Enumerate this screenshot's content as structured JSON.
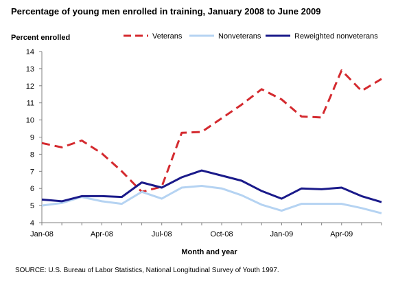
{
  "chart_data": {
    "type": "line",
    "title": "Percentage of young men enrolled in training, January 2008 to June 2009",
    "ylabel": "Percent enrolled",
    "xlabel": "Month and year",
    "source": "SOURCE: U.S. Bureau of Labor Statistics, National Longitudinal Survey of Youth 1997.",
    "ylim": [
      4,
      14
    ],
    "yticks": [
      "4",
      "5",
      "6",
      "7",
      "8",
      "9",
      "10",
      "11",
      "12",
      "13",
      "14"
    ],
    "x": [
      "Jan-08",
      "Feb-08",
      "Mar-08",
      "Apr-08",
      "May-08",
      "Jun-08",
      "Jul-08",
      "Aug-08",
      "Sep-08",
      "Oct-08",
      "Nov-08",
      "Dec-08",
      "Jan-09",
      "Feb-09",
      "Mar-09",
      "Apr-09",
      "May-09",
      "Jun-09"
    ],
    "xtick_labels": [
      "Jan-08",
      "Apr-08",
      "Jul-08",
      "Oct-08",
      "Jan-09",
      "Apr-09"
    ],
    "legend_position": "top",
    "series": [
      {
        "name": "Veterans",
        "color": "#d42a2f",
        "dash": true,
        "values": [
          8.65,
          8.4,
          8.8,
          8.05,
          7.0,
          5.8,
          6.1,
          9.25,
          9.3,
          10.1,
          10.9,
          11.8,
          11.2,
          10.2,
          10.15,
          12.9,
          11.7,
          12.4
        ]
      },
      {
        "name": "Nonveterans",
        "color": "#b5d3f2",
        "dash": false,
        "values": [
          5.0,
          5.15,
          5.5,
          5.25,
          5.1,
          5.8,
          5.4,
          6.05,
          6.15,
          6.0,
          5.6,
          5.05,
          4.7,
          5.1,
          5.1,
          5.1,
          4.85,
          4.55
        ]
      },
      {
        "name": "Reweighted nonveterans",
        "color": "#1a1a8a",
        "dash": false,
        "values": [
          5.35,
          5.25,
          5.55,
          5.55,
          5.5,
          6.35,
          6.05,
          6.65,
          7.05,
          6.75,
          6.45,
          5.85,
          5.4,
          6.0,
          5.95,
          6.05,
          5.55,
          5.2
        ]
      }
    ]
  }
}
